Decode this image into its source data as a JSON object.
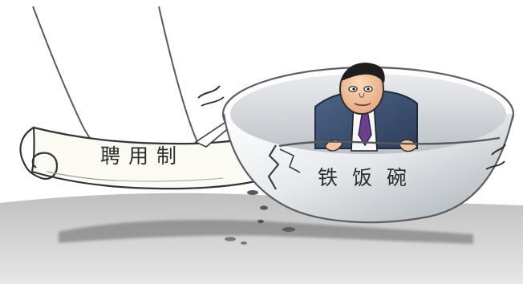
{
  "illustration": {
    "scroll_text": "聘用制",
    "bowl_text": "铁饭碗"
  },
  "colors": {
    "ink": "#222222",
    "paper": "#fbfbf4",
    "bowl_light": "#f3f5f7",
    "bowl_mid": "#c9ced3",
    "bowl_shadow": "#8f969c",
    "ground": "#d6d6d6",
    "suit": "#334a6a",
    "tie": "#6a3f8c",
    "skin": "#f3c49e"
  }
}
